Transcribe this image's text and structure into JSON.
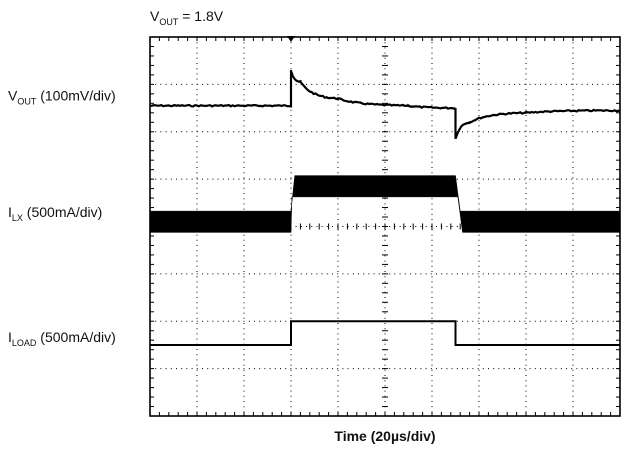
{
  "chart_data": {
    "type": "line",
    "title": {
      "main": "V",
      "sub": "OUT",
      "rest": " = 1.8V"
    },
    "xlabel": "Time (20µs/div)",
    "x_divisions": 10,
    "y_divisions": 8,
    "grid": true,
    "trigger_marker_div": 3,
    "series": [
      {
        "label_main": "V",
        "label_sub": "OUT",
        "label_rest": " (100mV/div)",
        "baseline_div": 1.45,
        "points": [
          [
            0,
            1.45
          ],
          [
            3.0,
            1.45
          ],
          [
            3.0,
            0.7
          ],
          [
            3.2,
            0.95
          ],
          [
            4.0,
            1.3
          ],
          [
            5.5,
            1.45
          ],
          [
            6.5,
            1.5
          ],
          [
            6.5,
            2.15
          ],
          [
            6.8,
            1.8
          ],
          [
            8.0,
            1.6
          ],
          [
            10,
            1.55
          ]
        ]
      },
      {
        "label_main": "I",
        "label_sub": "LX",
        "label_rest": " (500mA/div)",
        "baseline_div": 3.9,
        "active_div": 3.15,
        "ripple_div": 0.45,
        "step_start_div": 3.0,
        "step_end_div": 6.5
      },
      {
        "label_main": "I",
        "label_sub": "LOAD",
        "label_rest": " (500mA/div)",
        "points": [
          [
            0,
            6.5
          ],
          [
            3.0,
            6.5
          ],
          [
            3.0,
            6.0
          ],
          [
            6.5,
            6.0
          ],
          [
            6.5,
            6.5
          ],
          [
            10,
            6.5
          ]
        ]
      }
    ]
  }
}
